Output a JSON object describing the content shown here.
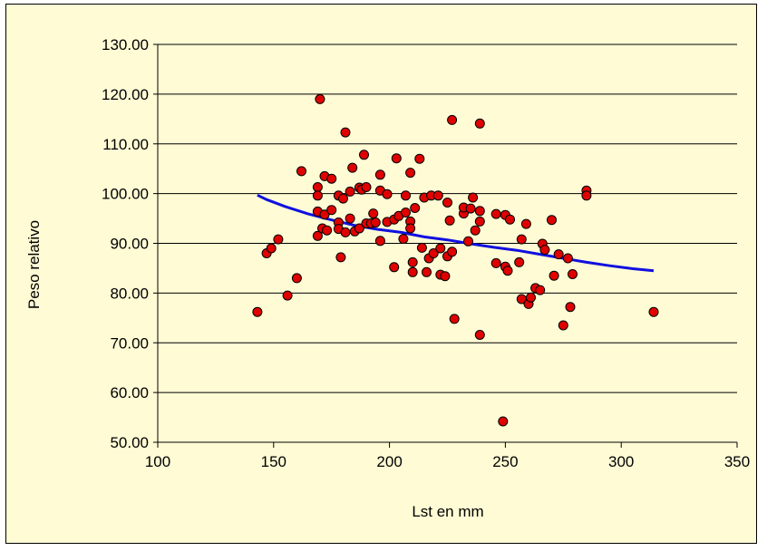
{
  "chart_data": {
    "type": "scatter",
    "title": "",
    "xlabel": "Lst en mm",
    "ylabel": "Peso relativo",
    "xlim": [
      100,
      350
    ],
    "ylim": [
      50,
      130
    ],
    "x_ticks": [
      "100",
      "150",
      "200",
      "250",
      "300",
      "350"
    ],
    "y_ticks": [
      "50.00",
      "60.00",
      "70.00",
      "80.00",
      "90.00",
      "100.00",
      "110.00",
      "120.00",
      "130.00"
    ],
    "grid": "horizontal",
    "legend": "none",
    "colors": {
      "background": "#fffbd5",
      "points": "#e00000",
      "point_edge": "#000000",
      "trend": "#1010e0"
    },
    "series": [
      {
        "type": "scatter",
        "points": [
          [
            143,
            76.2
          ],
          [
            147,
            88
          ],
          [
            149,
            89
          ],
          [
            152,
            90.8
          ],
          [
            156,
            79.5
          ],
          [
            160,
            83
          ],
          [
            162,
            104.5
          ],
          [
            169,
            101.3
          ],
          [
            169,
            99.6
          ],
          [
            169,
            96.4
          ],
          [
            169,
            91.5
          ],
          [
            170,
            119
          ],
          [
            171,
            93
          ],
          [
            172,
            103.5
          ],
          [
            172,
            95.8
          ],
          [
            173,
            92.6
          ],
          [
            175,
            103
          ],
          [
            175,
            96.7
          ],
          [
            178,
            99.6
          ],
          [
            178,
            94.2
          ],
          [
            178,
            92.9
          ],
          [
            179,
            87.2
          ],
          [
            180,
            99
          ],
          [
            181,
            112.3
          ],
          [
            181,
            92.2
          ],
          [
            183,
            95
          ],
          [
            183,
            100.4
          ],
          [
            184,
            105.2
          ],
          [
            185,
            92.4
          ],
          [
            187,
            101.2
          ],
          [
            187,
            93
          ],
          [
            188,
            100.8
          ],
          [
            189,
            107.8
          ],
          [
            190,
            101.3
          ],
          [
            190,
            94
          ],
          [
            192,
            94
          ],
          [
            193,
            96
          ],
          [
            194,
            94.2
          ],
          [
            196,
            103.8
          ],
          [
            196,
            100.6
          ],
          [
            196,
            90.5
          ],
          [
            199,
            99.9
          ],
          [
            199,
            94.3
          ],
          [
            202,
            85.2
          ],
          [
            202,
            94.8
          ],
          [
            203,
            107.1
          ],
          [
            204,
            95.5
          ],
          [
            206,
            90.9
          ],
          [
            207,
            99.6
          ],
          [
            207,
            96.2
          ],
          [
            209,
            104.2
          ],
          [
            209,
            94.4
          ],
          [
            209,
            93
          ],
          [
            210,
            86.2
          ],
          [
            210,
            84.2
          ],
          [
            211,
            97.1
          ],
          [
            213,
            107
          ],
          [
            214,
            89.1
          ],
          [
            215,
            99.2
          ],
          [
            216,
            84.2
          ],
          [
            217,
            87
          ],
          [
            218,
            99.6
          ],
          [
            219,
            88
          ],
          [
            221,
            99.6
          ],
          [
            222,
            89
          ],
          [
            222,
            83.7
          ],
          [
            224,
            83.4
          ],
          [
            225,
            87.4
          ],
          [
            225,
            98.2
          ],
          [
            226,
            94.6
          ],
          [
            227,
            114.8
          ],
          [
            227,
            88.3
          ],
          [
            228,
            74.8
          ],
          [
            232,
            96
          ],
          [
            232,
            97.2
          ],
          [
            234,
            90.4
          ],
          [
            235,
            97
          ],
          [
            236,
            99.2
          ],
          [
            237,
            92.6
          ],
          [
            239,
            114.1
          ],
          [
            239,
            96.5
          ],
          [
            239,
            94.4
          ],
          [
            239,
            71.6
          ],
          [
            246,
            86
          ],
          [
            246,
            95.9
          ],
          [
            249,
            54.2
          ],
          [
            250,
            95.7
          ],
          [
            250,
            85.3
          ],
          [
            251,
            84.5
          ],
          [
            252,
            94.8
          ],
          [
            256,
            86.2
          ],
          [
            257,
            90.8
          ],
          [
            257,
            78.8
          ],
          [
            259,
            93.9
          ],
          [
            260,
            77.8
          ],
          [
            261,
            79.1
          ],
          [
            263,
            81
          ],
          [
            265,
            80.6
          ],
          [
            266,
            89.9
          ],
          [
            267,
            88.7
          ],
          [
            270,
            94.7
          ],
          [
            271,
            83.5
          ],
          [
            273,
            87.8
          ],
          [
            275,
            73.5
          ],
          [
            277,
            87
          ],
          [
            278,
            77.2
          ],
          [
            279,
            83.8
          ],
          [
            285,
            100.6
          ],
          [
            285,
            99.6
          ],
          [
            314,
            76.2
          ]
        ]
      },
      {
        "type": "line",
        "points": [
          [
            143,
            99.7
          ],
          [
            147,
            98.8
          ],
          [
            155,
            97.4
          ],
          [
            165,
            95.9
          ],
          [
            175,
            94.7
          ],
          [
            185,
            93.6
          ],
          [
            195,
            92.8
          ],
          [
            205,
            92.2
          ],
          [
            215,
            91.3
          ],
          [
            225,
            90.7
          ],
          [
            235,
            89.9
          ],
          [
            245,
            89.2
          ],
          [
            255,
            88.6
          ],
          [
            265,
            87.8
          ],
          [
            275,
            87.0
          ],
          [
            285,
            86.2
          ],
          [
            295,
            85.5
          ],
          [
            305,
            84.9
          ],
          [
            314,
            84.5
          ]
        ]
      }
    ]
  }
}
